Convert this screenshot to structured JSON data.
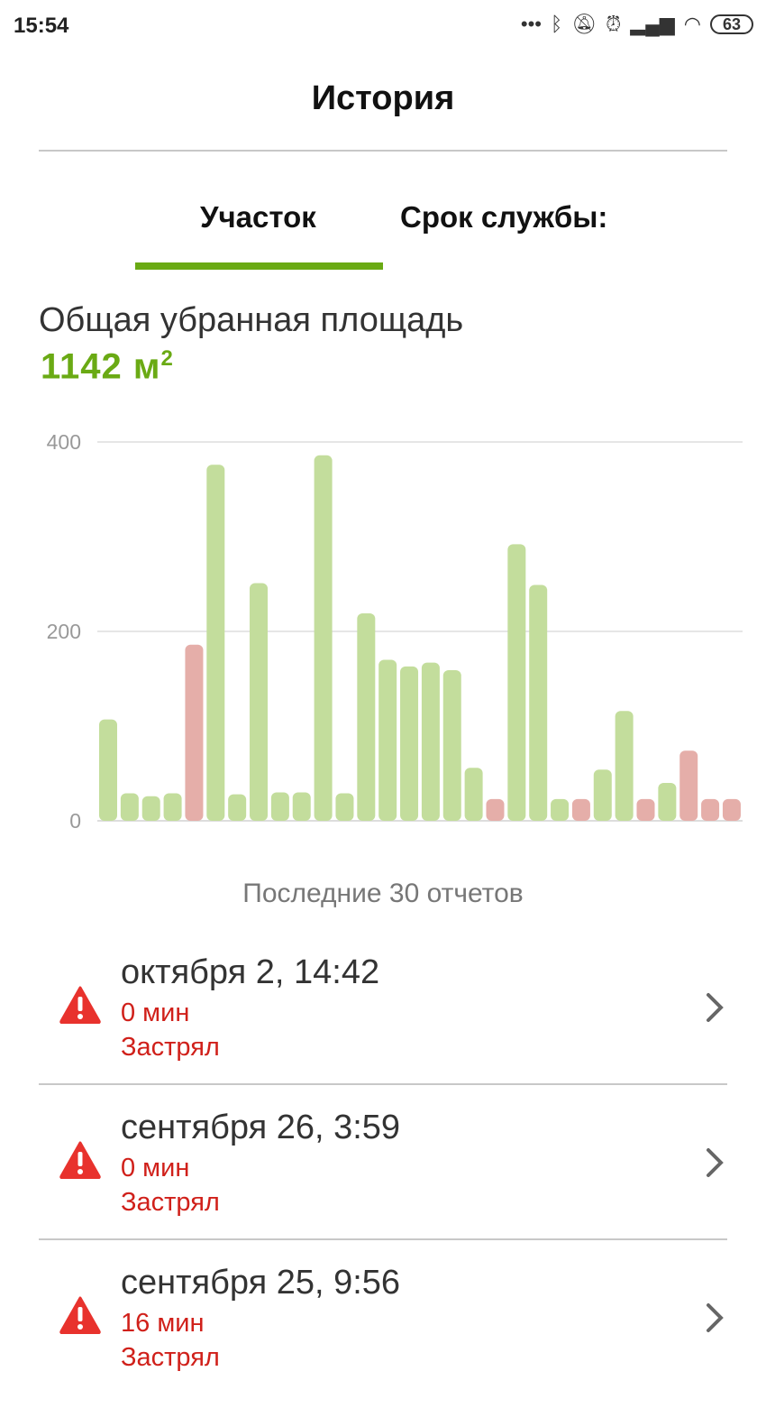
{
  "status_bar": {
    "time": "15:54",
    "battery": "63",
    "icons": [
      "more-dots-icon",
      "bluetooth-icon",
      "silent-bell-icon",
      "alarm-icon",
      "signal-icon",
      "wifi-icon",
      "battery-icon"
    ]
  },
  "header": {
    "title": "История"
  },
  "tabs": [
    {
      "label": "Участок",
      "active": true
    },
    {
      "label": "Срок службы:",
      "active": false
    }
  ],
  "summary": {
    "label": "Общая убранная площадь",
    "value": "1142 м",
    "unit_sup": "2"
  },
  "colors": {
    "accent": "#6aaa14",
    "bar_ok": "#c3dd9c",
    "bar_error": "#e5aea9",
    "error_text": "#d0201a"
  },
  "chart_data": {
    "type": "bar",
    "ylim": [
      0,
      400
    ],
    "yticks": [
      0,
      200,
      400
    ],
    "grid": true,
    "values": [
      107,
      29,
      26,
      29,
      186,
      376,
      28,
      251,
      30,
      30,
      386,
      29,
      219,
      170,
      163,
      167,
      159,
      56,
      23,
      292,
      249,
      23,
      23,
      54,
      116,
      23,
      40,
      74,
      23,
      23
    ],
    "status": [
      "ok",
      "ok",
      "ok",
      "ok",
      "error",
      "ok",
      "ok",
      "ok",
      "ok",
      "ok",
      "ok",
      "ok",
      "ok",
      "ok",
      "ok",
      "ok",
      "ok",
      "ok",
      "error",
      "ok",
      "ok",
      "ok",
      "error",
      "ok",
      "ok",
      "error",
      "ok",
      "error",
      "error",
      "error"
    ],
    "caption": "Последние 30 отчетов"
  },
  "reports": [
    {
      "date": "октября 2, 14:42",
      "duration": "0 мин",
      "status": "Застрял"
    },
    {
      "date": "сентября 26, 3:59",
      "duration": "0 мин",
      "status": "Застрял"
    },
    {
      "date": "сентября 25, 9:56",
      "duration": "16 мин",
      "status": "Застрял"
    }
  ]
}
